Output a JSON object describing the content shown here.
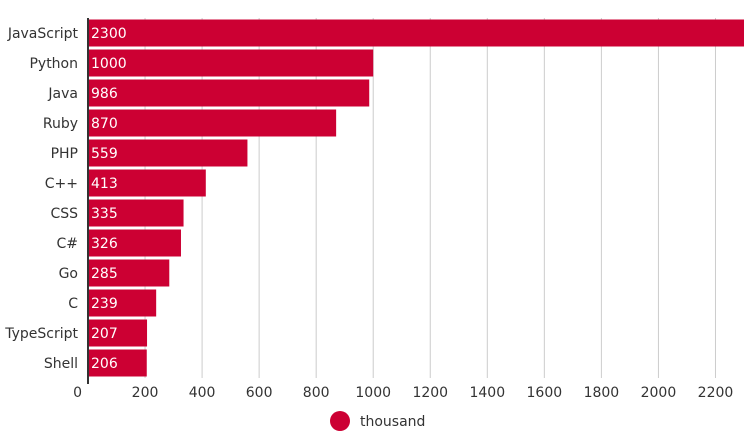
{
  "chart_data": {
    "type": "bar",
    "orientation": "horizontal",
    "categories": [
      "JavaScript",
      "Python",
      "Java",
      "Ruby",
      "PHP",
      "C++",
      "CSS",
      "C#",
      "Go",
      "C",
      "TypeScript",
      "Shell"
    ],
    "series": [
      {
        "name": "thousand",
        "values": [
          2300,
          1000,
          986,
          870,
          559,
          413,
          335,
          326,
          285,
          239,
          207,
          206
        ],
        "color": "#cc0033"
      }
    ],
    "xticks": [
      0,
      200,
      400,
      600,
      800,
      1000,
      1200,
      1400,
      1600,
      1800,
      2000,
      2200
    ],
    "xlim": [
      0,
      2300
    ],
    "grid": true,
    "legend": "bottom-center",
    "title": "",
    "xlabel": "",
    "ylabel": ""
  }
}
